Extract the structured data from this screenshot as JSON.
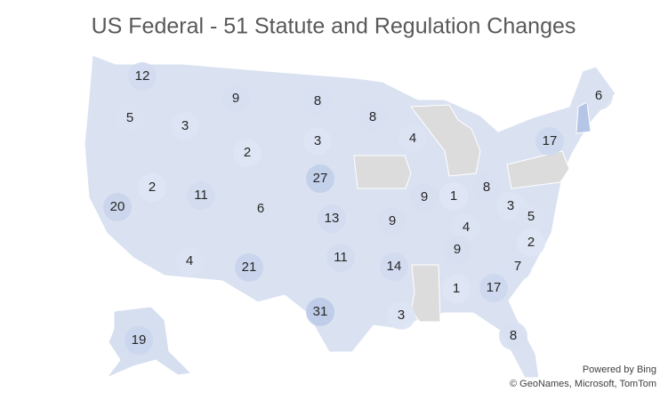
{
  "chart_data": {
    "type": "map",
    "title": "US Federal - 51 Statute and Regulation Changes",
    "values": [
      12,
      5,
      3,
      9,
      8,
      3,
      8,
      4,
      6,
      17,
      2,
      2,
      11,
      20,
      6,
      27,
      13,
      9,
      1,
      8,
      9,
      3,
      4,
      5,
      9,
      2,
      4,
      21,
      11,
      14,
      7,
      1,
      17,
      31,
      3,
      8,
      19
    ],
    "color_min": "#dfe6f4",
    "color_max": "#bccbe8",
    "no_data_color": "#dcdcdc",
    "attribution": [
      "Powered by Bing",
      "© GeoNames, Microsoft, TomTom"
    ]
  }
}
